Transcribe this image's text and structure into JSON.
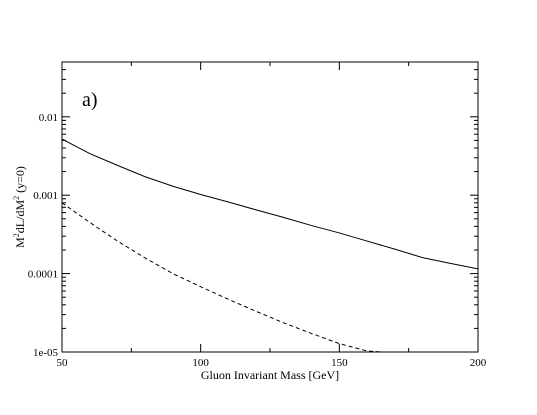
{
  "chart_data": {
    "type": "line",
    "title": "",
    "panel_label": "a)",
    "xlabel": "Gluon Invariant Mass [GeV]",
    "ylabel": {
      "p1": "M",
      "p2": "2",
      "p3": "dL/dM",
      "p4": "2",
      "p5": " (y=0)"
    },
    "xlim": [
      50,
      200
    ],
    "ylim": [
      1e-05,
      0.05
    ],
    "yscale": "log",
    "grid": false,
    "legend": "none",
    "x_ticks": [
      50,
      100,
      150,
      200
    ],
    "x_tick_labels": [
      "50",
      "100",
      "150",
      "200"
    ],
    "y_ticks": [
      1e-05,
      0.0001,
      0.001,
      0.01
    ],
    "y_tick_labels": [
      "1e-05",
      "0.0001",
      "0.001",
      "0.01"
    ],
    "series": [
      {
        "style": "solid",
        "color": "#000000",
        "x": [
          50,
          60,
          70,
          80,
          90,
          100,
          110,
          120,
          130,
          140,
          150,
          160,
          170,
          180,
          190,
          200
        ],
        "y": [
          0.0052,
          0.0034,
          0.0024,
          0.00172,
          0.0013,
          0.00102,
          0.00082,
          0.00065,
          0.00052,
          0.00041,
          0.00033,
          0.00026,
          0.000205,
          0.00016,
          0.000135,
          0.000115
        ]
      },
      {
        "style": "dashed",
        "color": "#000000",
        "x": [
          50,
          60,
          70,
          80,
          90,
          100,
          110,
          120,
          130,
          140,
          150,
          160,
          165
        ],
        "y": [
          0.0008,
          0.00045,
          0.00026,
          0.000158,
          0.0001,
          6.8e-05,
          4.7e-05,
          3.3e-05,
          2.35e-05,
          1.72e-05,
          1.28e-05,
          1.03e-05,
          1e-05
        ]
      }
    ]
  }
}
